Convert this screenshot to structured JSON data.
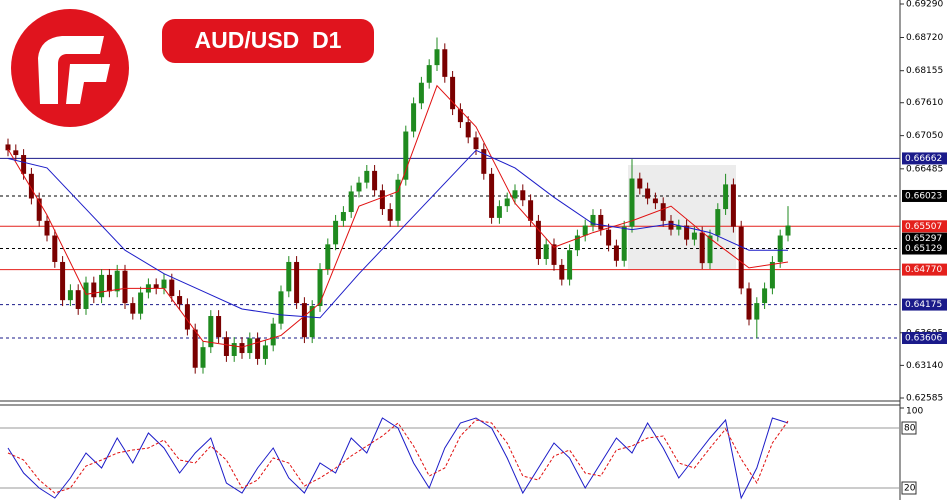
{
  "chart_data": {
    "type": "candlestick",
    "title": "AUD/USD  D1",
    "ylim": [
      0.62585,
      0.6929
    ],
    "yticks": [
      {
        "value": 0.6929,
        "label": "0.69290"
      },
      {
        "value": 0.6872,
        "label": "0.68720"
      },
      {
        "value": 0.68155,
        "label": "0.68155"
      },
      {
        "value": 0.6761,
        "label": "0.67610"
      },
      {
        "value": 0.6705,
        "label": "0.67050"
      },
      {
        "value": 0.66485,
        "label": "0.66485"
      },
      {
        "value": 0.63695,
        "label": "0.63695"
      },
      {
        "value": 0.6314,
        "label": "0.63140"
      },
      {
        "value": 0.62585,
        "label": "0.62585"
      }
    ],
    "up_color": "#1f8a1f",
    "down_color": "#7a0000",
    "candles": [
      [
        0.669,
        0.67,
        0.667,
        0.668
      ],
      [
        0.668,
        0.669,
        0.6662,
        0.6672
      ],
      [
        0.6672,
        0.6682,
        0.663,
        0.664
      ],
      [
        0.664,
        0.665,
        0.6588,
        0.6598
      ],
      [
        0.6598,
        0.6608,
        0.655,
        0.656
      ],
      [
        0.656,
        0.657,
        0.6525,
        0.6535
      ],
      [
        0.6535,
        0.6545,
        0.648,
        0.649
      ],
      [
        0.649,
        0.65,
        0.6415,
        0.6425
      ],
      [
        0.6425,
        0.6452,
        0.6415,
        0.6442
      ],
      [
        0.6442,
        0.6452,
        0.64,
        0.641
      ],
      [
        0.641,
        0.6465,
        0.64,
        0.6455
      ],
      [
        0.6455,
        0.6465,
        0.642,
        0.643
      ],
      [
        0.643,
        0.6478,
        0.642,
        0.6468
      ],
      [
        0.6468,
        0.6478,
        0.643,
        0.644
      ],
      [
        0.644,
        0.6485,
        0.643,
        0.6475
      ],
      [
        0.6475,
        0.6485,
        0.641,
        0.642
      ],
      [
        0.642,
        0.643,
        0.6392,
        0.6402
      ],
      [
        0.6402,
        0.6448,
        0.6392,
        0.6438
      ],
      [
        0.6438,
        0.6462,
        0.6428,
        0.6452
      ],
      [
        0.6452,
        0.6462,
        0.6435,
        0.6445
      ],
      [
        0.6445,
        0.647,
        0.6435,
        0.646
      ],
      [
        0.646,
        0.647,
        0.6422,
        0.6432
      ],
      [
        0.6432,
        0.6442,
        0.6408,
        0.6418
      ],
      [
        0.6418,
        0.6428,
        0.6365,
        0.6375
      ],
      [
        0.6375,
        0.6385,
        0.63,
        0.631
      ],
      [
        0.631,
        0.6355,
        0.63,
        0.6345
      ],
      [
        0.6345,
        0.6408,
        0.6335,
        0.6398
      ],
      [
        0.6398,
        0.6408,
        0.6352,
        0.6362
      ],
      [
        0.6362,
        0.6372,
        0.632,
        0.633
      ],
      [
        0.633,
        0.6362,
        0.632,
        0.6352
      ],
      [
        0.6352,
        0.6362,
        0.6325,
        0.6335
      ],
      [
        0.6335,
        0.637,
        0.6325,
        0.636
      ],
      [
        0.636,
        0.637,
        0.6315,
        0.6325
      ],
      [
        0.6325,
        0.6358,
        0.6315,
        0.6348
      ],
      [
        0.6348,
        0.6395,
        0.6338,
        0.6385
      ],
      [
        0.6385,
        0.645,
        0.6375,
        0.644
      ],
      [
        0.644,
        0.65,
        0.643,
        0.649
      ],
      [
        0.649,
        0.65,
        0.641,
        0.642
      ],
      [
        0.642,
        0.643,
        0.6352,
        0.6362
      ],
      [
        0.6362,
        0.6425,
        0.6352,
        0.6415
      ],
      [
        0.6415,
        0.6488,
        0.6405,
        0.6478
      ],
      [
        0.6478,
        0.653,
        0.6468,
        0.652
      ],
      [
        0.652,
        0.657,
        0.651,
        0.656
      ],
      [
        0.656,
        0.6585,
        0.655,
        0.6575
      ],
      [
        0.6575,
        0.662,
        0.6565,
        0.661
      ],
      [
        0.661,
        0.6635,
        0.66,
        0.6625
      ],
      [
        0.6625,
        0.6655,
        0.6615,
        0.6645
      ],
      [
        0.6645,
        0.6655,
        0.6602,
        0.6612
      ],
      [
        0.6612,
        0.6622,
        0.657,
        0.658
      ],
      [
        0.658,
        0.659,
        0.655,
        0.656
      ],
      [
        0.656,
        0.664,
        0.655,
        0.663
      ],
      [
        0.663,
        0.6722,
        0.662,
        0.6712
      ],
      [
        0.6712,
        0.677,
        0.6702,
        0.676
      ],
      [
        0.676,
        0.6805,
        0.675,
        0.6795
      ],
      [
        0.6795,
        0.6835,
        0.6785,
        0.6825
      ],
      [
        0.6825,
        0.6872,
        0.6815,
        0.6852
      ],
      [
        0.6852,
        0.6862,
        0.6795,
        0.6805
      ],
      [
        0.6805,
        0.6815,
        0.674,
        0.675
      ],
      [
        0.675,
        0.676,
        0.6718,
        0.6728
      ],
      [
        0.6728,
        0.6738,
        0.6692,
        0.6702
      ],
      [
        0.6702,
        0.6712,
        0.6672,
        0.6682
      ],
      [
        0.6682,
        0.6692,
        0.663,
        0.664
      ],
      [
        0.664,
        0.665,
        0.6555,
        0.6565
      ],
      [
        0.6565,
        0.6595,
        0.6555,
        0.6585
      ],
      [
        0.6585,
        0.6608,
        0.6575,
        0.6598
      ],
      [
        0.6598,
        0.6622,
        0.6588,
        0.6612
      ],
      [
        0.6612,
        0.6622,
        0.6585,
        0.6595
      ],
      [
        0.6595,
        0.6605,
        0.655,
        0.656
      ],
      [
        0.656,
        0.657,
        0.6485,
        0.6495
      ],
      [
        0.6495,
        0.653,
        0.6485,
        0.652
      ],
      [
        0.652,
        0.653,
        0.6475,
        0.6485
      ],
      [
        0.6485,
        0.6495,
        0.645,
        0.646
      ],
      [
        0.646,
        0.652,
        0.645,
        0.651
      ],
      [
        0.651,
        0.6545,
        0.65,
        0.6535
      ],
      [
        0.6535,
        0.6562,
        0.6525,
        0.6552
      ],
      [
        0.6552,
        0.658,
        0.6542,
        0.657
      ],
      [
        0.657,
        0.658,
        0.6535,
        0.6545
      ],
      [
        0.6545,
        0.6555,
        0.6508,
        0.6518
      ],
      [
        0.6518,
        0.6528,
        0.6482,
        0.6492
      ],
      [
        0.6492,
        0.656,
        0.6482,
        0.655
      ],
      [
        0.655,
        0.6665,
        0.654,
        0.6632
      ],
      [
        0.6632,
        0.6642,
        0.6605,
        0.6615
      ],
      [
        0.6615,
        0.6625,
        0.6588,
        0.6598
      ],
      [
        0.6598,
        0.6608,
        0.658,
        0.659
      ],
      [
        0.659,
        0.66,
        0.655,
        0.656
      ],
      [
        0.656,
        0.657,
        0.6535,
        0.6545
      ],
      [
        0.6545,
        0.6562,
        0.6535,
        0.6552
      ],
      [
        0.6552,
        0.6562,
        0.6518,
        0.6528
      ],
      [
        0.6528,
        0.655,
        0.6518,
        0.654
      ],
      [
        0.654,
        0.655,
        0.6478,
        0.6488
      ],
      [
        0.6488,
        0.6545,
        0.6478,
        0.6535
      ],
      [
        0.6535,
        0.659,
        0.6525,
        0.658
      ],
      [
        0.658,
        0.664,
        0.657,
        0.6622
      ],
      [
        0.6622,
        0.6632,
        0.654,
        0.655
      ],
      [
        0.655,
        0.656,
        0.6435,
        0.6445
      ],
      [
        0.6445,
        0.6455,
        0.6382,
        0.6392
      ],
      [
        0.6392,
        0.643,
        0.636,
        0.642
      ],
      [
        0.642,
        0.6455,
        0.641,
        0.6445
      ],
      [
        0.6445,
        0.65,
        0.6435,
        0.649
      ],
      [
        0.649,
        0.6545,
        0.648,
        0.6535
      ],
      [
        0.6535,
        0.6585,
        0.6525,
        0.6552
      ]
    ],
    "moving_averages": [
      {
        "color": "#e01010",
        "x": [
          0,
          5,
          10,
          15,
          20,
          25,
          30,
          35,
          40,
          45,
          50,
          55,
          60,
          65,
          70,
          75,
          80,
          85,
          90,
          95,
          100
        ],
        "values": [
          0.6682,
          0.657,
          0.6435,
          0.6445,
          0.6445,
          0.6355,
          0.6345,
          0.6365,
          0.642,
          0.6585,
          0.661,
          0.679,
          0.672,
          0.659,
          0.6515,
          0.654,
          0.656,
          0.6585,
          0.653,
          0.648,
          0.649
        ]
      },
      {
        "color": "#1c1cc8",
        "x": [
          0,
          5,
          10,
          15,
          20,
          25,
          30,
          35,
          40,
          45,
          50,
          55,
          60,
          65,
          70,
          75,
          80,
          85,
          90,
          95,
          100
        ],
        "values": [
          0.6666,
          0.665,
          0.658,
          0.651,
          0.647,
          0.644,
          0.641,
          0.64,
          0.6395,
          0.647,
          0.654,
          0.661,
          0.668,
          0.665,
          0.66,
          0.6555,
          0.6545,
          0.6555,
          0.654,
          0.651,
          0.651
        ]
      }
    ],
    "levels": [
      {
        "value": 0.66662,
        "label": "0.66662",
        "color": "#1a1a8a",
        "line": "solid"
      },
      {
        "value": 0.66023,
        "label": "0.66023",
        "color": "#000000",
        "line": "dashed"
      },
      {
        "value": 0.65507,
        "label": "0.65507",
        "color": "#e4201c",
        "line": "solid"
      },
      {
        "value": 0.65297,
        "label": "0.65297",
        "color": "#000000",
        "line": "none"
      },
      {
        "value": 0.65129,
        "label": "0.65129",
        "color": "#000000",
        "line": "dashed"
      },
      {
        "value": 0.6477,
        "label": "0.64770",
        "color": "#e4201c",
        "line": "solid"
      },
      {
        "value": 0.64175,
        "label": "0.64175",
        "color": "#1a1a8a",
        "line": "dashed"
      },
      {
        "value": 0.63606,
        "label": "0.63606",
        "color": "#1a1a8a",
        "line": "dashed"
      }
    ],
    "stochastic": {
      "ylim": [
        0,
        100
      ],
      "yticks": [
        100
      ],
      "levels": [
        80,
        20
      ],
      "x": [
        0,
        2,
        4,
        6,
        8,
        10,
        12,
        14,
        16,
        18,
        20,
        22,
        24,
        26,
        28,
        30,
        32,
        34,
        36,
        38,
        40,
        42,
        44,
        46,
        48,
        50,
        52,
        54,
        56,
        58,
        60,
        62,
        64,
        66,
        68,
        70,
        72,
        74,
        76,
        78,
        80,
        82,
        84,
        86,
        88,
        90,
        92,
        94,
        96,
        98,
        100
      ],
      "series": [
        {
          "color": "#1c1cc8",
          "dashed": false,
          "values": [
            60,
            35,
            20,
            10,
            30,
            55,
            40,
            70,
            45,
            75,
            60,
            35,
            55,
            70,
            25,
            15,
            40,
            60,
            30,
            15,
            45,
            35,
            70,
            55,
            90,
            80,
            45,
            20,
            60,
            85,
            90,
            80,
            50,
            15,
            40,
            65,
            50,
            20,
            45,
            70,
            55,
            85,
            60,
            30,
            50,
            70,
            88,
            10,
            40,
            90,
            85
          ]
        },
        {
          "color": "#e01010",
          "dashed": true,
          "values": [
            55,
            48,
            28,
            15,
            20,
            42,
            48,
            55,
            58,
            60,
            68,
            48,
            45,
            62,
            48,
            20,
            28,
            50,
            45,
            22,
            30,
            40,
            52,
            62,
            72,
            85,
            62,
            32,
            40,
            72,
            88,
            85,
            65,
            32,
            28,
            52,
            58,
            35,
            32,
            58,
            62,
            70,
            72,
            45,
            40,
            60,
            79,
            49,
            25,
            65,
            87
          ]
        }
      ]
    }
  }
}
